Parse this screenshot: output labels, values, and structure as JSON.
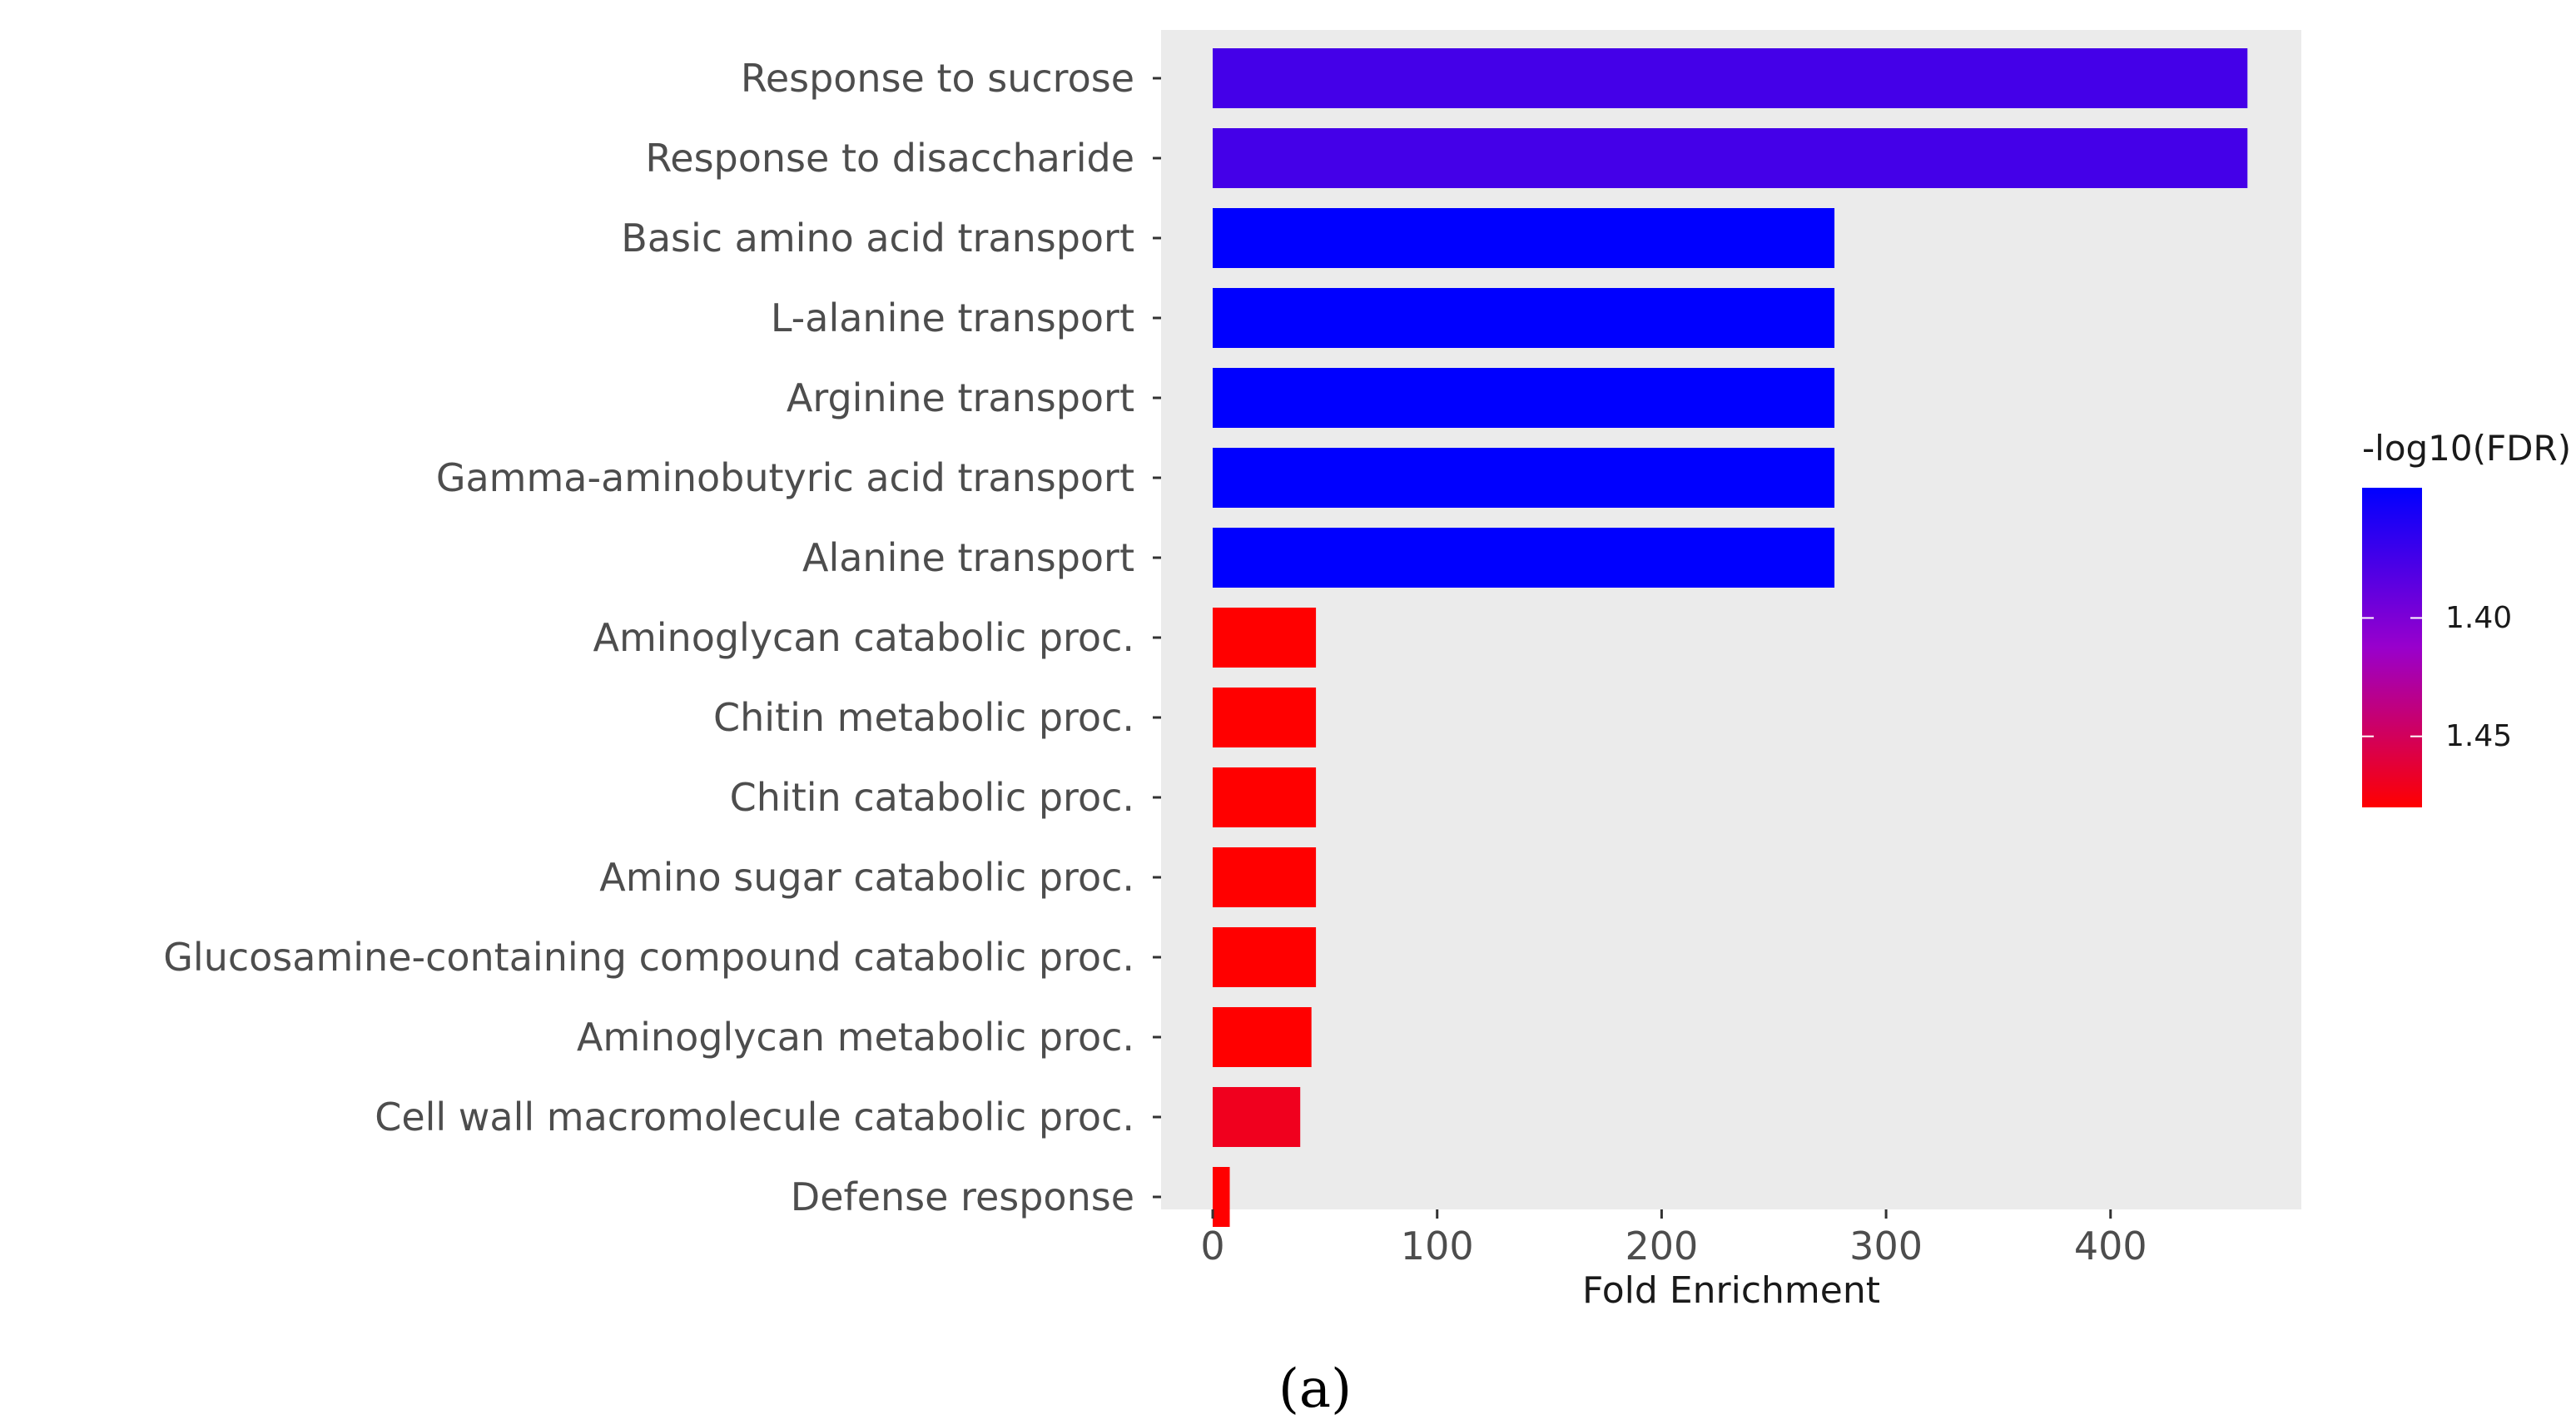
{
  "chart_data": {
    "type": "bar",
    "orientation": "horizontal",
    "categories": [
      "Response to sucrose",
      "Response to disaccharide",
      "Basic amino acid transport",
      "L-alanine transport",
      "Arginine transport",
      "Gamma-aminobutyric acid transport",
      "Alanine transport",
      "Aminoglycan catabolic proc.",
      "Chitin metabolic proc.",
      "Chitin catabolic proc.",
      "Amino sugar catabolic proc.",
      "Glucosamine-containing compound catabolic proc.",
      "Aminoglycan metabolic proc.",
      "Cell wall macromolecule catabolic proc.",
      "Defense response"
    ],
    "values": [
      461,
      461,
      277,
      277,
      277,
      277,
      277,
      46,
      46,
      46,
      46,
      46,
      44,
      39,
      7.6
    ],
    "fdr": [
      1.375,
      1.375,
      1.345,
      1.345,
      1.345,
      1.345,
      1.345,
      1.48,
      1.48,
      1.48,
      1.48,
      1.48,
      1.48,
      1.47,
      1.48
    ],
    "xlabel": "Fold Enrichment",
    "xlim": [
      -23,
      485
    ],
    "xticks": [
      0,
      100,
      200,
      300,
      400
    ],
    "xtick_labels": [
      "0",
      "100",
      "200",
      "300",
      "400"
    ],
    "grid": false,
    "panel_background": "#ebebeb",
    "legend": {
      "title": "-log10(FDR)",
      "position": "right",
      "range": [
        1.345,
        1.48
      ],
      "ticks": [
        1.4,
        1.45
      ],
      "tick_labels": [
        "1.40",
        "1.45"
      ],
      "low_color": "#ff0000",
      "high_color": "#0000ff"
    }
  },
  "panel_label": "(a)"
}
